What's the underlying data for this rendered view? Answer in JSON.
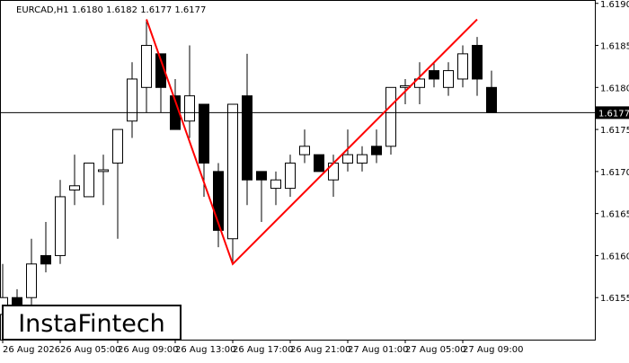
{
  "chart_data": {
    "type": "candlestick",
    "title": "EURCAD,H1  1.6180 1.6182 1.6177 1.6177",
    "categories": [
      "26 Aug 2026",
      null,
      null,
      null,
      "26 Aug 05:00",
      null,
      null,
      null,
      "26 Aug 09:00",
      null,
      null,
      null,
      "26 Aug 13:00",
      null,
      null,
      null,
      "26 Aug 17:00",
      null,
      null,
      null,
      "26 Aug 21:00",
      null,
      null,
      null,
      "27 Aug 01:00",
      null,
      null,
      null,
      "27 Aug 05:00",
      null,
      null,
      null,
      "27 Aug 09:00",
      null,
      null
    ],
    "open": [
      1.6153,
      1.6155,
      1.6155,
      1.616,
      1.616,
      1.61678,
      1.6167,
      1.617,
      1.6171,
      1.6176,
      1.618,
      1.6184,
      1.6179,
      1.6176,
      1.6178,
      1.617,
      1.6162,
      1.6179,
      1.617,
      1.6168,
      1.6168,
      1.6172,
      1.6172,
      1.6169,
      1.6171,
      1.6171,
      1.6173,
      1.6173,
      1.618,
      1.618,
      1.6182,
      1.618,
      1.6181,
      1.6185,
      1.618
    ],
    "high": [
      1.6159,
      1.6156,
      1.6162,
      1.6164,
      1.6169,
      1.6172,
      1.6171,
      1.6172,
      1.6175,
      1.6183,
      1.6188,
      1.6184,
      1.6181,
      1.6185,
      1.6178,
      1.6171,
      1.6178,
      1.6184,
      1.617,
      1.617,
      1.6172,
      1.6175,
      1.6172,
      1.6172,
      1.6175,
      1.6173,
      1.6175,
      1.618,
      1.6181,
      1.6183,
      1.6183,
      1.6183,
      1.6185,
      1.6186,
      1.6182
    ],
    "low": [
      1.615,
      1.6152,
      1.6153,
      1.6158,
      1.6159,
      1.6166,
      1.6167,
      1.6166,
      1.6162,
      1.6174,
      1.6177,
      1.6177,
      1.6175,
      1.6174,
      1.6167,
      1.6161,
      1.6159,
      1.6166,
      1.6164,
      1.6166,
      1.6167,
      1.6171,
      1.617,
      1.6167,
      1.617,
      1.617,
      1.6171,
      1.6172,
      1.6178,
      1.6178,
      1.618,
      1.6179,
      1.618,
      1.6179,
      1.6177
    ],
    "close": [
      1.6155,
      1.6154,
      1.6159,
      1.6159,
      1.6167,
      1.61683,
      1.6171,
      1.61702,
      1.6175,
      1.6181,
      1.6185,
      1.618,
      1.6175,
      1.6179,
      1.6171,
      1.6163,
      1.6178,
      1.6169,
      1.6169,
      1.6169,
      1.6171,
      1.6173,
      1.617,
      1.6171,
      1.6172,
      1.6172,
      1.6172,
      1.618,
      1.61802,
      1.6181,
      1.6181,
      1.6182,
      1.6184,
      1.6181,
      1.6177
    ],
    "ylim": [
      1.615,
      1.61904
    ],
    "yticks": [
      {
        "value": 1.6155,
        "label": "1.6155"
      },
      {
        "value": 1.616,
        "label": "1.6160"
      },
      {
        "value": 1.6165,
        "label": "1.6165"
      },
      {
        "value": 1.617,
        "label": "1.6170"
      },
      {
        "value": 1.6175,
        "label": "1.6175"
      },
      {
        "value": 1.618,
        "label": "1.6180"
      },
      {
        "value": 1.6185,
        "label": "1.6185"
      },
      {
        "value": 1.619,
        "label": "1.6190"
      }
    ],
    "last_price": {
      "value": 1.6177,
      "label": "1.6177"
    },
    "pattern_color": "#ff0000",
    "pattern_x": [
      10,
      16,
      33
    ],
    "pattern_y": [
      1.61881,
      1.6159,
      1.61881
    ],
    "grid": false
  },
  "logo": "InstaFintech"
}
